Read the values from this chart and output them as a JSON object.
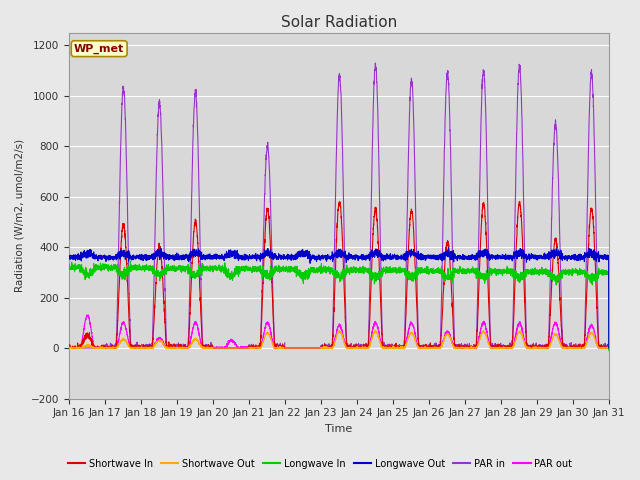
{
  "title": "Solar Radiation",
  "ylabel": "Radiation (W/m2, umol/m2/s)",
  "xlabel": "Time",
  "ylim": [
    -200,
    1250
  ],
  "yticks": [
    -200,
    0,
    200,
    400,
    600,
    800,
    1000,
    1200
  ],
  "x_tick_labels": [
    "Jan 16",
    "Jan 17",
    "Jan 18",
    "Jan 19",
    "Jan 20",
    "Jan 21",
    "Jan 22",
    "Jan 23",
    "Jan 24",
    "Jan 25",
    "Jan 26",
    "Jan 27",
    "Jan 28",
    "Jan 29",
    "Jan 30",
    "Jan 31"
  ],
  "background_color": "#e8e8e8",
  "plot_bg_color": "#d8d8d8",
  "grid_color": "#c0c0c0",
  "station_label": "WP_met",
  "series": {
    "shortwave_in": {
      "color": "#dd0000",
      "label": "Shortwave In",
      "lw": 0.8
    },
    "shortwave_out": {
      "color": "#ffaa00",
      "label": "Shortwave Out",
      "lw": 0.8
    },
    "longwave_in": {
      "color": "#00cc00",
      "label": "Longwave In",
      "lw": 0.8
    },
    "longwave_out": {
      "color": "#0000cc",
      "label": "Longwave Out",
      "lw": 0.8
    },
    "par_in": {
      "color": "#9933cc",
      "label": "PAR in",
      "lw": 0.8
    },
    "par_out": {
      "color": "#ff00ff",
      "label": "PAR out",
      "lw": 0.8
    }
  },
  "par_in_peaks": [
    0,
    1030,
    970,
    1010,
    0,
    800,
    0,
    1080,
    1120,
    1060,
    1090,
    1100,
    1120,
    890,
    1090
  ],
  "par_out_peaks": [
    130,
    100,
    40,
    100,
    30,
    100,
    0,
    90,
    100,
    100,
    65,
    100,
    100,
    100,
    90
  ],
  "sw_in_peaks": [
    50,
    490,
    400,
    500,
    0,
    550,
    0,
    580,
    550,
    545,
    420,
    570,
    575,
    430,
    555
  ],
  "sw_out_peaks": [
    10,
    35,
    30,
    35,
    0,
    60,
    0,
    65,
    65,
    60,
    55,
    65,
    65,
    55,
    60
  ],
  "lw_in_base": 310,
  "lw_out_base": 360
}
